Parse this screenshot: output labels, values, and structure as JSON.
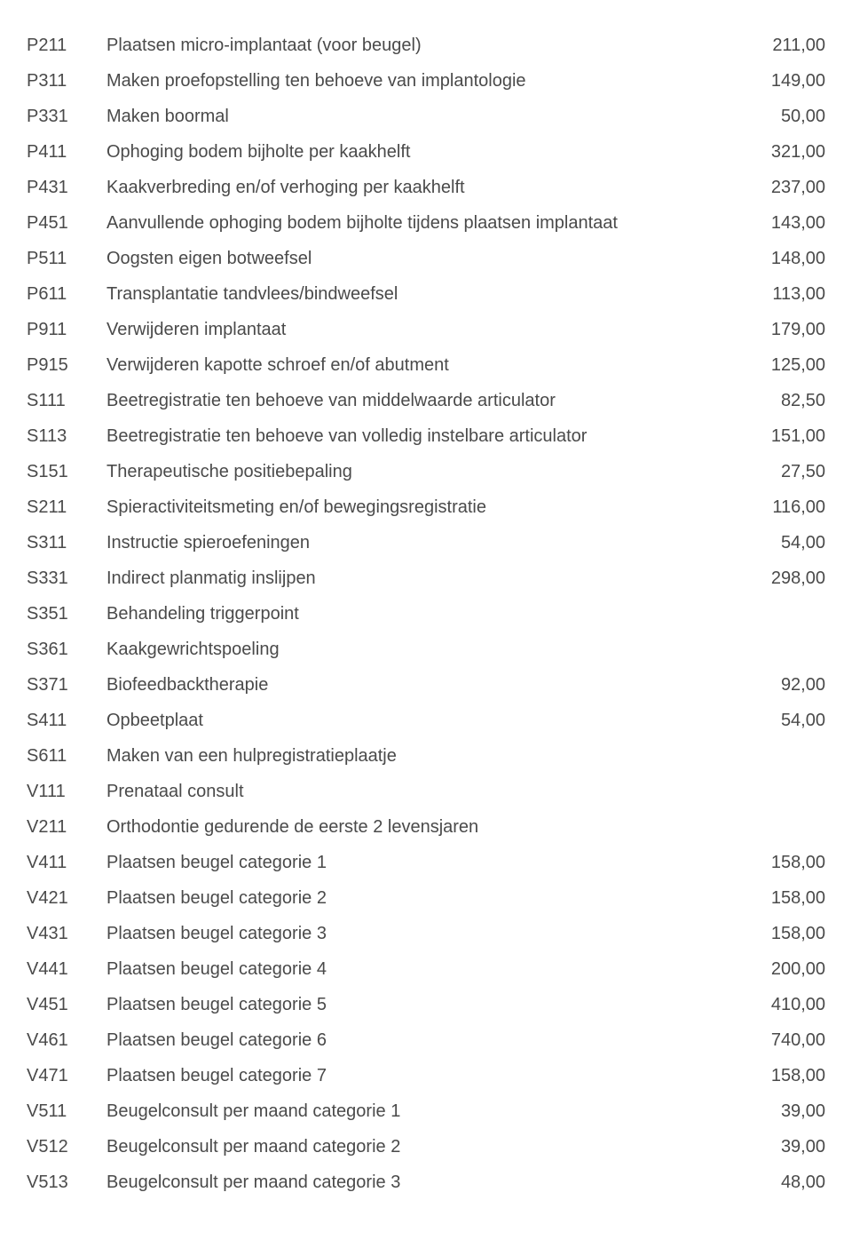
{
  "text_color": "#4a4a4a",
  "background_color": "#ffffff",
  "font_size": 20,
  "rows": [
    {
      "code": "P211",
      "desc": "Plaatsen micro-implantaat (voor beugel)",
      "price": "211,00"
    },
    {
      "code": "P311",
      "desc": "Maken proefopstelling ten behoeve van implantologie",
      "price": "149,00"
    },
    {
      "code": "P331",
      "desc": "Maken boormal",
      "price": "50,00"
    },
    {
      "code": "P411",
      "desc": "Ophoging bodem bijholte per kaakhelft",
      "price": "321,00"
    },
    {
      "code": "P431",
      "desc": "Kaakverbreding en/of verhoging per kaakhelft",
      "price": "237,00"
    },
    {
      "code": "P451",
      "desc": "Aanvullende ophoging bodem bijholte tijdens plaatsen implantaat",
      "price": "143,00"
    },
    {
      "code": "P511",
      "desc": "Oogsten eigen botweefsel",
      "price": "148,00"
    },
    {
      "code": "P611",
      "desc": "Transplantatie tandvlees/bindweefsel",
      "price": "113,00"
    },
    {
      "code": "P911",
      "desc": "Verwijderen implantaat",
      "price": "179,00"
    },
    {
      "code": "P915",
      "desc": "Verwijderen kapotte schroef en/of abutment",
      "price": "125,00"
    },
    {
      "code": "S111",
      "desc": "Beetregistratie ten behoeve van middelwaarde articulator",
      "price": "82,50"
    },
    {
      "code": "S113",
      "desc": "Beetregistratie ten behoeve van volledig instelbare articulator",
      "price": "151,00"
    },
    {
      "code": "S151",
      "desc": "Therapeutische positiebepaling",
      "price": "27,50"
    },
    {
      "code": "S211",
      "desc": "Spieractiviteitsmeting en/of bewegingsregistratie",
      "price": "116,00"
    },
    {
      "code": "S311",
      "desc": "Instructie spieroefeningen",
      "price": "54,00"
    },
    {
      "code": "S331",
      "desc": "Indirect planmatig inslijpen",
      "price": "298,00"
    },
    {
      "code": "S351",
      "desc": "Behandeling triggerpoint",
      "price": ""
    },
    {
      "code": "S361",
      "desc": "Kaakgewrichtspoeling",
      "price": ""
    },
    {
      "code": "S371",
      "desc": "Biofeedbacktherapie",
      "price": "92,00"
    },
    {
      "code": "S411",
      "desc": "Opbeetplaat",
      "price": "54,00"
    },
    {
      "code": "S611",
      "desc": "Maken van een hulpregistratieplaatje",
      "price": ""
    },
    {
      "code": "V111",
      "desc": "Prenataal consult",
      "price": ""
    },
    {
      "code": "V211",
      "desc": "Orthodontie gedurende de eerste 2 levensjaren",
      "price": ""
    },
    {
      "code": "V411",
      "desc": "Plaatsen beugel categorie 1",
      "price": "158,00"
    },
    {
      "code": "V421",
      "desc": "Plaatsen beugel categorie 2",
      "price": "158,00"
    },
    {
      "code": "V431",
      "desc": "Plaatsen beugel categorie 3",
      "price": "158,00"
    },
    {
      "code": "V441",
      "desc": "Plaatsen beugel categorie 4",
      "price": "200,00"
    },
    {
      "code": "V451",
      "desc": "Plaatsen beugel categorie 5",
      "price": "410,00"
    },
    {
      "code": "V461",
      "desc": "Plaatsen beugel categorie 6",
      "price": "740,00"
    },
    {
      "code": "V471",
      "desc": "Plaatsen beugel categorie 7",
      "price": "158,00"
    },
    {
      "code": "V511",
      "desc": "Beugelconsult per maand categorie 1",
      "price": "39,00"
    },
    {
      "code": "V512",
      "desc": "Beugelconsult per maand categorie 2",
      "price": "39,00"
    },
    {
      "code": "V513",
      "desc": "Beugelconsult per maand categorie 3",
      "price": "48,00"
    }
  ]
}
